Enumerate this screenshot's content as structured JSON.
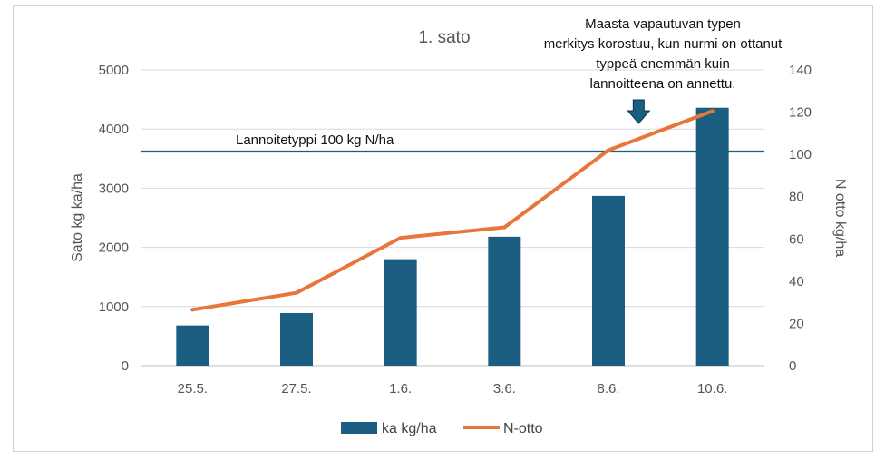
{
  "chart_data": {
    "type": "bar+line",
    "title": "1. sato",
    "categories": [
      "25.5.",
      "27.5.",
      "1.6.",
      "3.6.",
      "8.6.",
      "10.6."
    ],
    "series": [
      {
        "name": "ka kg/ha",
        "kind": "bar",
        "axis": "left",
        "color": "#1b5e82",
        "values": [
          680,
          890,
          1800,
          2180,
          2870,
          4360
        ]
      },
      {
        "name": "N-otto",
        "kind": "line",
        "axis": "right",
        "color": "#e8763a",
        "values": [
          26.5,
          34.5,
          60.5,
          65.5,
          102,
          120.5
        ]
      }
    ],
    "ylabel": "Sato kg ka/ha",
    "y2label": "N otto kg/ha",
    "ylim": [
      0,
      5000
    ],
    "y2lim": [
      0,
      140
    ],
    "yticks": [
      "0",
      "1000",
      "2000",
      "3000",
      "4000",
      "5000"
    ],
    "y2ticks": [
      "0",
      "20",
      "40",
      "60",
      "80",
      "100",
      "120",
      "140"
    ],
    "gridlines": true,
    "legend_position": "bottom",
    "reference_line": {
      "label": "Lannoitetyppi 100 kg N/ha",
      "value": 3620,
      "color": "#1b5e82"
    },
    "annotation": {
      "lines": [
        "Maasta vapautuvan typen",
        "merkitys korostuu, kun nurmi on ottanut",
        "typpeä enemmän kuin",
        "lannoitteena on annettu."
      ],
      "arrow_category": "8.6.",
      "arrow_color": "#1b5e82"
    }
  }
}
